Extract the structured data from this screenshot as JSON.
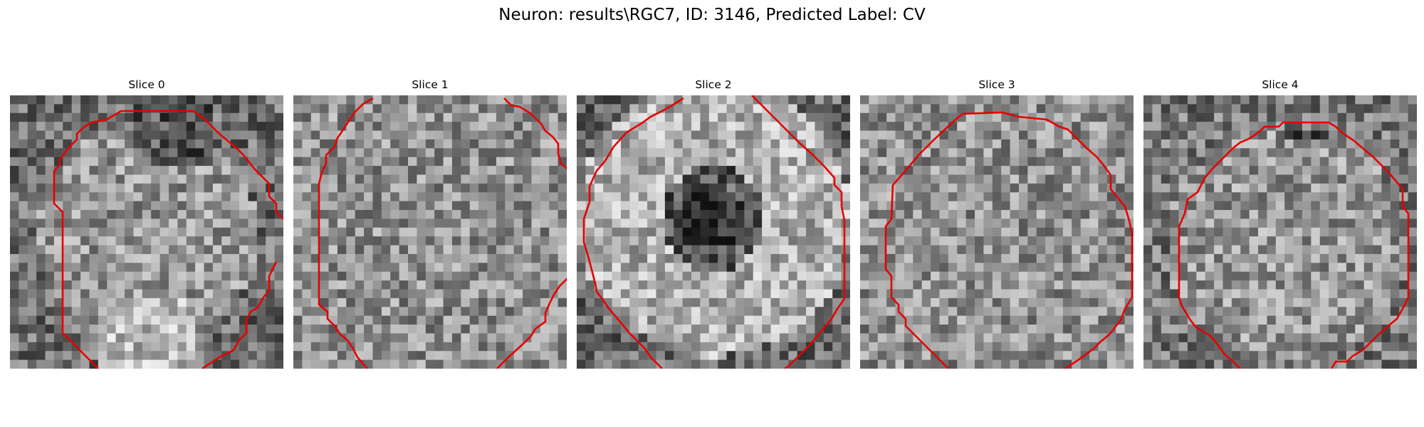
{
  "figure": {
    "title": "Neuron: results\\RGC7, ID: 3146, Predicted Label: CV"
  },
  "panels": [
    {
      "title": "Slice 0",
      "seed": 11,
      "pattern": "ring-left-bright",
      "contour_color": "#e60000"
    },
    {
      "title": "Slice 1",
      "seed": 23,
      "pattern": "uniform",
      "contour_color": "#e60000"
    },
    {
      "title": "Slice 2",
      "seed": 37,
      "pattern": "dark-center",
      "contour_color": "#e60000"
    },
    {
      "title": "Slice 3",
      "seed": 51,
      "pattern": "uniform",
      "contour_color": "#e60000"
    },
    {
      "title": "Slice 4",
      "seed": 67,
      "pattern": "dark-top",
      "contour_color": "#e60000"
    }
  ]
}
